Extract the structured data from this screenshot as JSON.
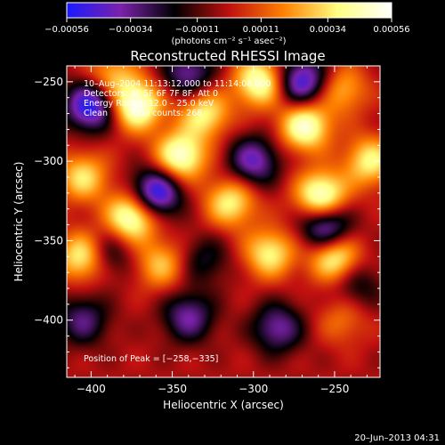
{
  "chart_data": {
    "type": "heatmap",
    "title": "Reconstructed RHESSI Image",
    "xlabel": "Heliocentric X (arcsec)",
    "ylabel": "Heliocentric Y (arcsec)",
    "xlim": [
      -415,
      -222
    ],
    "ylim": [
      -436,
      -240
    ],
    "x_ticks": [
      -400,
      -350,
      -300,
      -250
    ],
    "x_tick_labels": [
      "−400",
      "−350",
      "−300",
      "−250"
    ],
    "y_ticks": [
      -250,
      -300,
      -350,
      -400
    ],
    "y_tick_labels": [
      "−250",
      "−300",
      "−350",
      "−400"
    ],
    "colorbar": {
      "min": -0.00056,
      "max": 0.00056,
      "ticks": [
        -0.00056,
        -0.00034,
        -0.00011,
        0.00011,
        0.00034,
        0.00056
      ],
      "tick_labels": [
        "−0.00056",
        "−0.00034",
        "−0.00011",
        "0.00011",
        "0.00034",
        "0.00056"
      ],
      "label": "(photons cm⁻² s⁻¹ asec⁻²)",
      "colors": [
        "#1a1aff",
        "#7a22aa",
        "#000000",
        "#c01010",
        "#ff8000",
        "#ffff80",
        "#ffffff"
      ]
    },
    "annotations": {
      "time": "10–Aug–2004 11:13:12.000 to 11:14:08.000",
      "detectors": "Detectors: 4F 5F 6F 7F 8F, Att 0",
      "energy": "Energy Range: 12.0 – 25.0 keV",
      "method": "Clean",
      "counts": "Total counts: 268",
      "peak": "Position of Peak = [−258,−335]"
    },
    "peak": [
      -258,
      -335
    ],
    "sources": [
      {
        "x": -372,
        "y": -265,
        "v": 0.00056
      },
      {
        "x": -345,
        "y": -297,
        "v": 0.00053
      },
      {
        "x": -314,
        "y": -326,
        "v": 0.0004
      },
      {
        "x": -330,
        "y": -270,
        "v": 0.0004
      },
      {
        "x": -296,
        "y": -250,
        "v": 0.0005
      },
      {
        "x": -268,
        "y": -278,
        "v": 0.00052
      },
      {
        "x": -258,
        "y": -322,
        "v": 0.00056
      },
      {
        "x": -405,
        "y": -310,
        "v": 0.00036
      },
      {
        "x": -375,
        "y": -335,
        "v": 0.00055
      },
      {
        "x": -405,
        "y": -360,
        "v": 0.00045
      },
      {
        "x": -357,
        "y": -365,
        "v": 0.0003
      },
      {
        "x": -290,
        "y": -358,
        "v": 0.0004
      },
      {
        "x": -250,
        "y": -360,
        "v": 0.00048
      },
      {
        "x": -228,
        "y": -300,
        "v": 0.0004
      },
      {
        "x": -245,
        "y": -400,
        "v": 0.00018
      },
      {
        "x": -245,
        "y": -255,
        "v": 0.00028
      },
      {
        "x": -388,
        "y": -247,
        "v": 0.0003
      },
      {
        "x": -400,
        "y": -265,
        "v": -0.00056
      },
      {
        "x": -360,
        "y": -320,
        "v": -0.00056
      },
      {
        "x": -300,
        "y": -300,
        "v": -0.0004
      },
      {
        "x": -340,
        "y": -245,
        "v": -0.00035
      },
      {
        "x": -270,
        "y": -250,
        "v": -0.0005
      },
      {
        "x": -255,
        "y": -342,
        "v": -0.0005
      },
      {
        "x": -390,
        "y": -358,
        "v": -0.00025
      },
      {
        "x": -330,
        "y": -362,
        "v": -0.0002
      },
      {
        "x": -405,
        "y": -400,
        "v": -0.0003
      },
      {
        "x": -340,
        "y": -398,
        "v": -0.00035
      },
      {
        "x": -285,
        "y": -405,
        "v": -0.00035
      },
      {
        "x": -236,
        "y": -378,
        "v": -0.0002
      }
    ]
  },
  "footer": {
    "date": "20–Jun–2013 04:31"
  }
}
